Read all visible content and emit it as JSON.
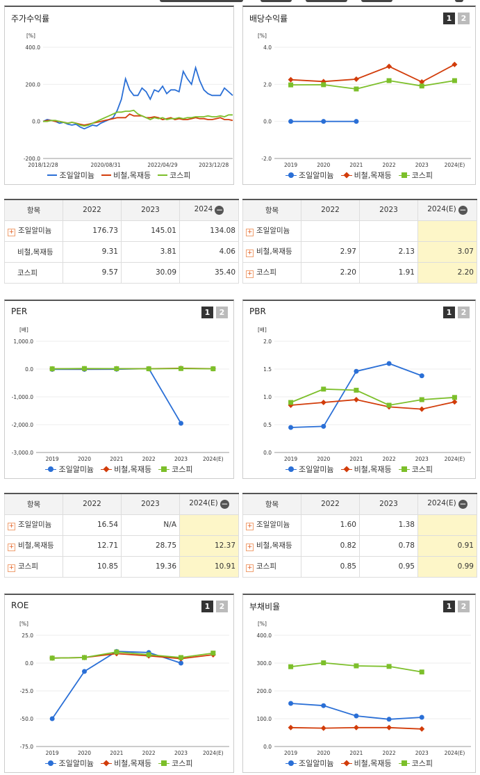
{
  "colors": {
    "series1": "#2a6fd6",
    "series2": "#d23c0a",
    "series3": "#7cbf2a"
  },
  "pager": {
    "p1": "1",
    "p2": "2"
  },
  "legend_names": [
    "조일알미늄",
    "비철,목재등",
    "코스피"
  ],
  "panels": {
    "returns": {
      "title": "주가수익률",
      "unit": "[%]",
      "chart_data": {
        "type": "line",
        "ylim": [
          -200,
          400
        ],
        "yticks": [
          "400.0",
          "200.0",
          "0.0",
          "-200.0"
        ],
        "xtick_labels": [
          "2018/12/28",
          "2020/08/31",
          "2022/04/29",
          "2023/12/28"
        ],
        "series": [
          {
            "name": "조일알미늄",
            "values": [
              0,
              10,
              5,
              0,
              -10,
              -5,
              -15,
              -20,
              -15,
              -30,
              -40,
              -30,
              -20,
              -25,
              -10,
              0,
              10,
              20,
              60,
              120,
              230,
              170,
              140,
              140,
              180,
              160,
              120,
              170,
              160,
              190,
              150,
              170,
              170,
              160,
              270,
              230,
              200,
              290,
              220,
              170,
              150,
              140,
              140,
              140,
              180,
              160,
              140
            ]
          },
          {
            "name": "비철,목재등",
            "values": [
              0,
              5,
              5,
              0,
              0,
              -5,
              -10,
              -5,
              -10,
              -15,
              -20,
              -15,
              -10,
              -5,
              0,
              5,
              10,
              15,
              20,
              20,
              20,
              40,
              30,
              30,
              30,
              20,
              20,
              25,
              20,
              10,
              15,
              20,
              10,
              15,
              10,
              10,
              15,
              20,
              15,
              15,
              10,
              10,
              15,
              20,
              10,
              10,
              5
            ]
          },
          {
            "name": "코스피",
            "values": [
              0,
              0,
              5,
              5,
              0,
              -5,
              -10,
              -5,
              -10,
              -20,
              -25,
              -20,
              -10,
              0,
              10,
              20,
              30,
              40,
              50,
              50,
              55,
              55,
              60,
              40,
              30,
              20,
              10,
              20,
              15,
              20,
              10,
              15,
              15,
              20,
              15,
              20,
              20,
              25,
              25,
              25,
              30,
              25,
              25,
              30,
              25,
              35,
              35
            ]
          }
        ]
      },
      "table": {
        "header": [
          "항목",
          "2022",
          "2023",
          "2024"
        ],
        "rows": [
          {
            "name": "조일알미늄",
            "plus": true,
            "values": [
              "176.73",
              "145.01",
              "134.08"
            ]
          },
          {
            "name": "비철,목재등",
            "plus": false,
            "values": [
              "9.31",
              "3.81",
              "4.06"
            ]
          },
          {
            "name": "코스피",
            "plus": false,
            "values": [
              "9.57",
              "30.09",
              "35.40"
            ]
          }
        ]
      }
    },
    "dividend": {
      "title": "배당수익률",
      "unit": "[%]",
      "chart_data": {
        "type": "line",
        "categories": [
          "2019",
          "2020",
          "2021",
          "2022",
          "2023",
          "2024(E)"
        ],
        "ylim": [
          -2,
          4
        ],
        "yticks": [
          "4.0",
          "2.0",
          "0.0",
          "-2.0"
        ],
        "series": [
          {
            "name": "조일알미늄",
            "values": [
              0,
              0,
              0,
              null,
              null,
              null
            ]
          },
          {
            "name": "비철,목재등",
            "values": [
              2.25,
              2.15,
              2.28,
              2.97,
              2.13,
              3.07
            ]
          },
          {
            "name": "코스피",
            "values": [
              1.97,
              1.98,
              1.75,
              2.2,
              1.91,
              2.2
            ]
          }
        ]
      },
      "table": {
        "header": [
          "항목",
          "2022",
          "2023",
          "2024(E)"
        ],
        "rows": [
          {
            "name": "조일알미늄",
            "plus": true,
            "values": [
              "",
              "",
              ""
            ]
          },
          {
            "name": "비철,목재등",
            "plus": true,
            "values": [
              "2.97",
              "2.13",
              "3.07"
            ]
          },
          {
            "name": "코스피",
            "plus": true,
            "values": [
              "2.20",
              "1.91",
              "2.20"
            ]
          }
        ]
      }
    },
    "per": {
      "title": "PER",
      "unit": "[배]",
      "chart_data": {
        "type": "line",
        "categories": [
          "2019",
          "2020",
          "2021",
          "2022",
          "2023",
          "2024(E)"
        ],
        "ylim": [
          -3000,
          1000
        ],
        "yticks": [
          "1,000.0",
          "0.0",
          "-1,000.0",
          "-2,000.0",
          "-3,000.0"
        ],
        "series": [
          {
            "name": "조일알미늄",
            "values": [
              -10,
              -10,
              -5,
              16.54,
              -1950,
              null
            ]
          },
          {
            "name": "비철,목재등",
            "values": [
              10,
              12,
              15,
              12.71,
              28.75,
              12.37
            ]
          },
          {
            "name": "코스피",
            "values": [
              10,
              20,
              15,
              10.85,
              19.36,
              10.91
            ]
          }
        ]
      },
      "table": {
        "header": [
          "항목",
          "2022",
          "2023",
          "2024(E)"
        ],
        "rows": [
          {
            "name": "조일알미늄",
            "plus": true,
            "values": [
              "16.54",
              "N/A",
              ""
            ]
          },
          {
            "name": "비철,목재등",
            "plus": true,
            "values": [
              "12.71",
              "28.75",
              "12.37"
            ]
          },
          {
            "name": "코스피",
            "plus": true,
            "values": [
              "10.85",
              "19.36",
              "10.91"
            ]
          }
        ]
      }
    },
    "pbr": {
      "title": "PBR",
      "unit": "[배]",
      "chart_data": {
        "type": "line",
        "categories": [
          "2019",
          "2020",
          "2021",
          "2022",
          "2023",
          "2024(E)"
        ],
        "ylim": [
          0,
          2
        ],
        "yticks": [
          "2.0",
          "1.5",
          "1.0",
          "0.5",
          "0.0"
        ],
        "series": [
          {
            "name": "조일알미늄",
            "values": [
              0.45,
              0.47,
              1.46,
              1.6,
              1.38,
              null
            ]
          },
          {
            "name": "비철,목재등",
            "values": [
              0.85,
              0.9,
              0.95,
              0.82,
              0.78,
              0.91
            ]
          },
          {
            "name": "코스피",
            "values": [
              0.9,
              1.14,
              1.12,
              0.85,
              0.95,
              0.99
            ]
          }
        ]
      },
      "table": {
        "header": [
          "항목",
          "2022",
          "2023",
          "2024(E)"
        ],
        "rows": [
          {
            "name": "조일알미늄",
            "plus": true,
            "values": [
              "1.60",
              "1.38",
              ""
            ]
          },
          {
            "name": "비철,목재등",
            "plus": true,
            "values": [
              "0.82",
              "0.78",
              "0.91"
            ]
          },
          {
            "name": "코스피",
            "plus": true,
            "values": [
              "0.85",
              "0.95",
              "0.99"
            ]
          }
        ]
      }
    },
    "roe": {
      "title": "ROE",
      "unit": "[%]",
      "chart_data": {
        "type": "line",
        "categories": [
          "2019",
          "2020",
          "2021",
          "2022",
          "2023",
          "2024(E)"
        ],
        "ylim": [
          -75,
          25
        ],
        "yticks": [
          "25.0",
          "0.0",
          "-25.0",
          "-50.0",
          "-75.0"
        ],
        "series": [
          {
            "name": "조일알미늄",
            "values": [
              -50,
              -7.5,
              10.5,
              9.5,
              0,
              null
            ]
          },
          {
            "name": "비철,목재등",
            "values": [
              4.5,
              5.0,
              8.5,
              6.5,
              4.0,
              7.5
            ]
          },
          {
            "name": "코스피",
            "values": [
              4.5,
              5.0,
              10.0,
              7.5,
              5.0,
              9.0
            ]
          }
        ]
      }
    },
    "debt": {
      "title": "부채비율",
      "unit": "[%]",
      "chart_data": {
        "type": "line",
        "categories": [
          "2019",
          "2020",
          "2021",
          "2022",
          "2023",
          "2024(E)"
        ],
        "ylim": [
          0,
          400
        ],
        "yticks": [
          "400.0",
          "300.0",
          "200.0",
          "100.0",
          "0.0"
        ],
        "series": [
          {
            "name": "조일알미늄",
            "values": [
              155,
              147,
              110,
              98,
              105,
              null
            ]
          },
          {
            "name": "비철,목재등",
            "values": [
              68,
              66,
              68,
              68,
              63,
              null
            ]
          },
          {
            "name": "코스피",
            "values": [
              287,
              301,
              290,
              288,
              268,
              null
            ]
          }
        ]
      }
    }
  }
}
